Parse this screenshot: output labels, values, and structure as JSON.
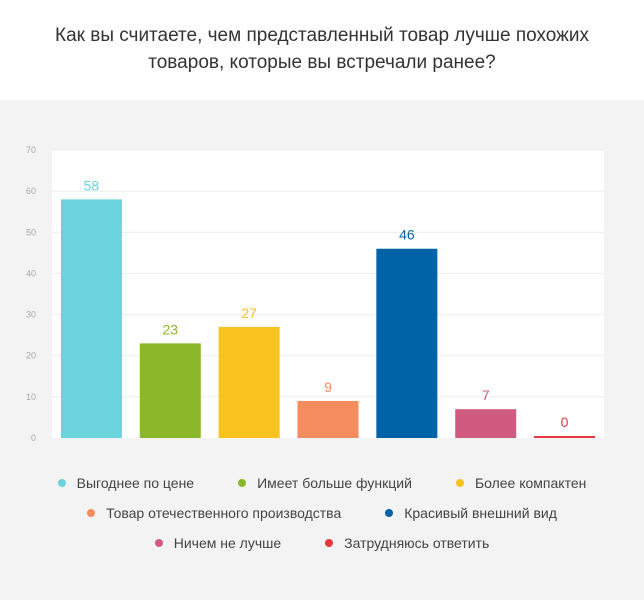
{
  "title": "Как вы считаете, чем представленный товар лучше похожих товаров, которые вы встречали ранее?",
  "chart_data": {
    "type": "bar",
    "title": "Как вы считаете, чем представленный товар лучше похожих товаров, которые вы встречали ранее?",
    "categories": [
      "Выгоднее по цене",
      "Имеет больше функций",
      "Более компактен",
      "Товар отечественного производства",
      "Красивый внешний вид",
      "Ничем не лучше",
      "Затрудняюсь ответить"
    ],
    "values": [
      58,
      23,
      27,
      9,
      46,
      7,
      0
    ],
    "colors": [
      "#6bd3dc",
      "#8ab82a",
      "#f8c21f",
      "#f48c5e",
      "#0163a7",
      "#d05b80",
      "#e8373d"
    ],
    "yticks": [
      "0",
      "10",
      "20",
      "30",
      "40",
      "50",
      "60",
      "70"
    ],
    "ylim": [
      0,
      70
    ],
    "grid": true,
    "legend_position": "bottom",
    "xlabel": "",
    "ylabel": ""
  }
}
